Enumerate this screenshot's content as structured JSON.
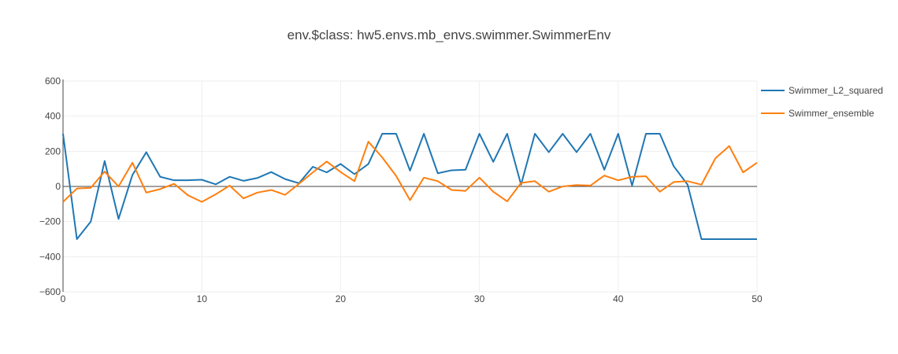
{
  "chart_data": {
    "type": "line",
    "title": "env.$class: hw5.envs.mb_envs.swimmer.SwimmerEnv",
    "xlabel": "",
    "ylabel": "",
    "xlim": [
      0,
      50
    ],
    "ylim": [
      -600,
      600
    ],
    "x_ticks": [
      0,
      10,
      20,
      30,
      40,
      50
    ],
    "y_ticks": [
      600,
      400,
      200,
      0,
      -200,
      -400,
      -600
    ],
    "y_tick_labels": [
      "600",
      "400",
      "200",
      "0",
      "−200",
      "−400",
      "−600"
    ],
    "grid": true,
    "legend_position": "top-right",
    "x": [
      0,
      1,
      2,
      3,
      4,
      5,
      6,
      7,
      8,
      9,
      10,
      11,
      12,
      13,
      14,
      15,
      16,
      17,
      18,
      19,
      20,
      21,
      22,
      23,
      24,
      25,
      26,
      27,
      28,
      29,
      30,
      31,
      32,
      33,
      34,
      35,
      36,
      37,
      38,
      39,
      40,
      41,
      42,
      43,
      44,
      45,
      46,
      47,
      48,
      49,
      50
    ],
    "series": [
      {
        "name": "Swimmer_L2_squared",
        "color": "#1f77b4",
        "values": [
          300,
          -300,
          -200,
          145,
          -185,
          65,
          195,
          55,
          35,
          35,
          38,
          12,
          55,
          32,
          48,
          82,
          42,
          18,
          112,
          80,
          128,
          70,
          128,
          300,
          300,
          90,
          300,
          75,
          92,
          95,
          300,
          140,
          300,
          10,
          300,
          195,
          300,
          195,
          300,
          95,
          300,
          5,
          300,
          300,
          115,
          10,
          -300,
          -300,
          -300,
          -300,
          -300
        ]
      },
      {
        "name": "Swimmer_ensemble",
        "color": "#ff7f0e",
        "values": [
          -88,
          -12,
          -8,
          85,
          0,
          135,
          -35,
          -15,
          15,
          -50,
          -88,
          -45,
          5,
          -68,
          -35,
          -20,
          -48,
          15,
          80,
          142,
          82,
          30,
          255,
          165,
          60,
          -78,
          50,
          30,
          -20,
          -25,
          50,
          -30,
          -85,
          20,
          30,
          -30,
          0,
          8,
          5,
          62,
          35,
          55,
          58,
          -30,
          25,
          30,
          10,
          160,
          230,
          80,
          135
        ]
      }
    ]
  }
}
